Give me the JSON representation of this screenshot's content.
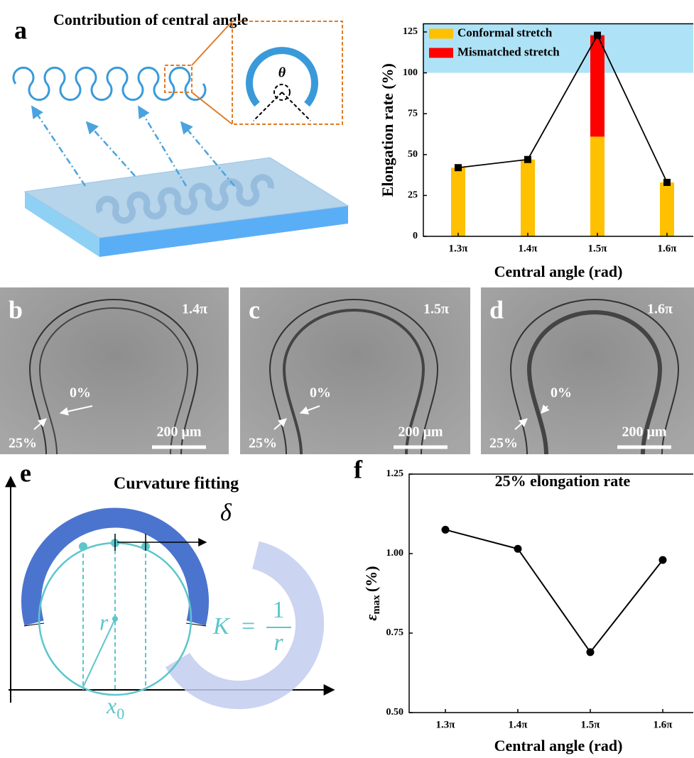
{
  "panels": {
    "a": {
      "label": "a",
      "title": "Contribution of central angle",
      "theta": "θ"
    },
    "b": {
      "label": "b",
      "angle": "1.4π",
      "strain_low": "0%",
      "strain_high": "25%",
      "scale": "200 μm"
    },
    "c": {
      "label": "c",
      "angle": "1.5π",
      "strain_low": "0%",
      "strain_high": "25%",
      "scale": "200 μm"
    },
    "d": {
      "label": "d",
      "angle": "1.6π",
      "strain_low": "0%",
      "strain_high": "25%",
      "scale": "200 μm"
    },
    "e": {
      "label": "e",
      "title": "Curvature fitting",
      "delta": "δ",
      "radius": "r",
      "formula_lhs": "K",
      "formula_eq": "=",
      "formula_num": "1",
      "formula_den": "r",
      "center": "x",
      "center_sub": "0"
    },
    "f": {
      "label": "f"
    }
  },
  "chart_data": [
    {
      "type": "stacked_bar",
      "xlabel": "Central angle (rad)",
      "ylabel": "Elongation rate (%)",
      "categories": [
        "1.3π",
        "1.4π",
        "1.5π",
        "1.6π"
      ],
      "series": [
        {
          "name": "Conformal stretch",
          "color": "#ffc000",
          "values": [
            42,
            47,
            61,
            33
          ]
        },
        {
          "name": "Mismatched stretch",
          "color": "#ff0000",
          "values": [
            0,
            0,
            62,
            0
          ]
        }
      ],
      "markers": {
        "color": "#000000",
        "values": [
          42,
          47,
          123,
          33
        ]
      },
      "highlight": {
        "range": [
          100,
          130
        ],
        "color": "#aee3f7"
      },
      "legend": "upper left",
      "ylim": [
        0,
        130
      ],
      "yticks": [
        0,
        25,
        50,
        75,
        100,
        125
      ]
    },
    {
      "type": "line",
      "title": "25% elongation rate",
      "xlabel": "Central angle (rad)",
      "ylabel": {
        "symbol": "ε",
        "subscript": "max",
        "unit": "(%)"
      },
      "categories": [
        "1.3π",
        "1.4π",
        "1.5π",
        "1.6π"
      ],
      "values": [
        1.075,
        1.015,
        0.69,
        0.98
      ],
      "color": "#000000",
      "ylim": [
        0.5,
        1.25
      ],
      "yticks": [
        {
          "value": 0.5,
          "label": "0.50"
        },
        {
          "value": 0.75,
          "label": "0.75"
        },
        {
          "value": 1.0,
          "label": "1.00"
        },
        {
          "value": 1.25,
          "label": "1.25"
        }
      ]
    }
  ]
}
